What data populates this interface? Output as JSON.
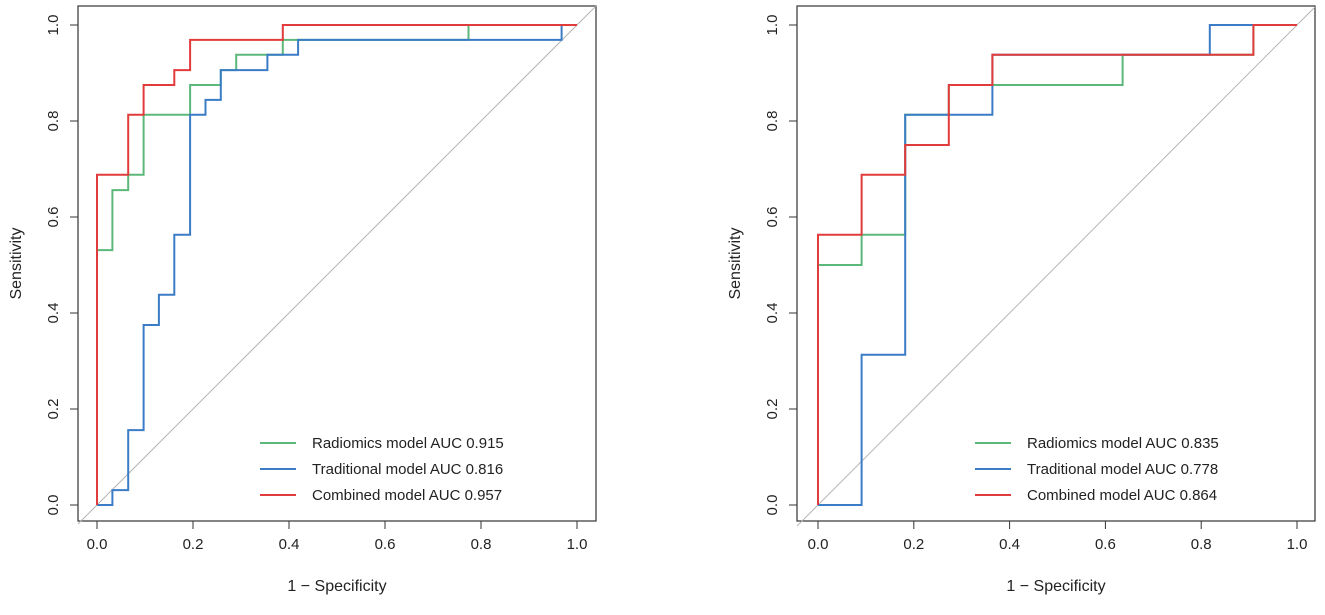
{
  "chart_data": [
    {
      "type": "line",
      "title": "",
      "xlabel": "1 − Specificity",
      "ylabel": "Sensitivity",
      "xlim": [
        0,
        1
      ],
      "ylim": [
        0,
        1
      ],
      "xticks": [
        "0.0",
        "0.2",
        "0.4",
        "0.6",
        "0.8",
        "1.0"
      ],
      "yticks": [
        "0.0",
        "0.2",
        "0.4",
        "0.6",
        "0.8",
        "1.0"
      ],
      "grid": false,
      "legend_position": "bottom-right",
      "reference_line": "diagonal",
      "series": [
        {
          "name": "Radiomics model AUC 0.915",
          "color": "#5cb87a",
          "points": [
            [
              0,
              0
            ],
            [
              0,
              0.531
            ],
            [
              0.032,
              0.531
            ],
            [
              0.032,
              0.656
            ],
            [
              0.065,
              0.656
            ],
            [
              0.065,
              0.688
            ],
            [
              0.097,
              0.688
            ],
            [
              0.097,
              0.813
            ],
            [
              0.194,
              0.813
            ],
            [
              0.194,
              0.875
            ],
            [
              0.258,
              0.875
            ],
            [
              0.258,
              0.906
            ],
            [
              0.29,
              0.906
            ],
            [
              0.29,
              0.938
            ],
            [
              0.387,
              0.938
            ],
            [
              0.387,
              0.969
            ],
            [
              0.774,
              0.969
            ],
            [
              0.774,
              1.0
            ],
            [
              1.0,
              1.0
            ]
          ]
        },
        {
          "name": "Traditional model AUC 0.816",
          "color": "#3a7cc6",
          "points": [
            [
              0,
              0
            ],
            [
              0.032,
              0
            ],
            [
              0.032,
              0.031
            ],
            [
              0.065,
              0.031
            ],
            [
              0.065,
              0.156
            ],
            [
              0.097,
              0.156
            ],
            [
              0.097,
              0.375
            ],
            [
              0.129,
              0.375
            ],
            [
              0.129,
              0.438
            ],
            [
              0.161,
              0.438
            ],
            [
              0.161,
              0.563
            ],
            [
              0.194,
              0.563
            ],
            [
              0.194,
              0.813
            ],
            [
              0.226,
              0.813
            ],
            [
              0.226,
              0.844
            ],
            [
              0.258,
              0.844
            ],
            [
              0.258,
              0.906
            ],
            [
              0.355,
              0.906
            ],
            [
              0.355,
              0.938
            ],
            [
              0.419,
              0.938
            ],
            [
              0.419,
              0.969
            ],
            [
              0.968,
              0.969
            ],
            [
              0.968,
              1.0
            ],
            [
              1.0,
              1.0
            ]
          ]
        },
        {
          "name": "Combined model AUC 0.957",
          "color": "#e23b3b",
          "points": [
            [
              0,
              0
            ],
            [
              0,
              0.688
            ],
            [
              0.032,
              0.688
            ],
            [
              0.065,
              0.688
            ],
            [
              0.065,
              0.813
            ],
            [
              0.097,
              0.813
            ],
            [
              0.097,
              0.875
            ],
            [
              0.161,
              0.875
            ],
            [
              0.161,
              0.906
            ],
            [
              0.194,
              0.906
            ],
            [
              0.194,
              0.969
            ],
            [
              0.387,
              0.969
            ],
            [
              0.387,
              1.0
            ],
            [
              1.0,
              1.0
            ]
          ]
        }
      ]
    },
    {
      "type": "line",
      "title": "",
      "xlabel": "1 − Specificity",
      "ylabel": "Sensitivity",
      "xlim": [
        0,
        1
      ],
      "ylim": [
        0,
        1
      ],
      "xticks": [
        "0.0",
        "0.2",
        "0.4",
        "0.6",
        "0.8",
        "1.0"
      ],
      "yticks": [
        "0.0",
        "0.2",
        "0.4",
        "0.6",
        "0.8",
        "1.0"
      ],
      "grid": false,
      "legend_position": "bottom-right",
      "reference_line": "diagonal",
      "series": [
        {
          "name": "Radiomics model AUC 0.835",
          "color": "#5cb87a",
          "points": [
            [
              0,
              0
            ],
            [
              0,
              0.5
            ],
            [
              0.091,
              0.5
            ],
            [
              0.091,
              0.563
            ],
            [
              0.182,
              0.563
            ],
            [
              0.182,
              0.813
            ],
            [
              0.273,
              0.813
            ],
            [
              0.273,
              0.875
            ],
            [
              0.636,
              0.875
            ],
            [
              0.636,
              0.938
            ],
            [
              0.909,
              0.938
            ],
            [
              0.909,
              1.0
            ],
            [
              1.0,
              1.0
            ]
          ]
        },
        {
          "name": "Traditional model AUC 0.778",
          "color": "#3a7cc6",
          "points": [
            [
              0,
              0
            ],
            [
              0.091,
              0
            ],
            [
              0.091,
              0.313
            ],
            [
              0.182,
              0.313
            ],
            [
              0.182,
              0.813
            ],
            [
              0.364,
              0.813
            ],
            [
              0.364,
              0.938
            ],
            [
              0.818,
              0.938
            ],
            [
              0.818,
              1.0
            ],
            [
              1.0,
              1.0
            ]
          ]
        },
        {
          "name": "Combined model AUC 0.864",
          "color": "#e23b3b",
          "points": [
            [
              0,
              0
            ],
            [
              0,
              0.563
            ],
            [
              0.091,
              0.563
            ],
            [
              0.091,
              0.688
            ],
            [
              0.182,
              0.688
            ],
            [
              0.182,
              0.75
            ],
            [
              0.273,
              0.75
            ],
            [
              0.273,
              0.875
            ],
            [
              0.364,
              0.875
            ],
            [
              0.364,
              0.938
            ],
            [
              0.909,
              0.938
            ],
            [
              0.909,
              1.0
            ],
            [
              1.0,
              1.0
            ]
          ]
        }
      ]
    }
  ],
  "colors": {
    "frame": "#333333",
    "diagonal": "#b5b5b5"
  }
}
